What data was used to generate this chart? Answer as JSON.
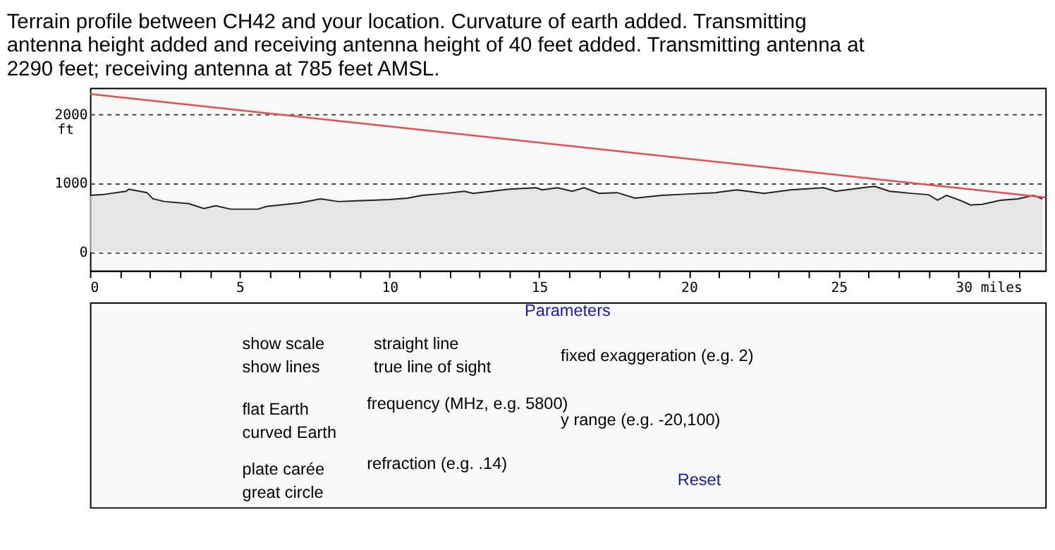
{
  "chart_data": {
    "type": "area",
    "title": "Terrain profile between CH42 and your location. Curvature of earth added. Transmitting antenna height added and receiving antenna height of 40 feet added. Transmitting antenna at 2290 feet; receiving antenna at 785 feet AMSL.",
    "ylabel": "ft",
    "series": [
      {
        "color": "#dddddd",
        "x": [
          0,
          0.4,
          1.2,
          1.3,
          1.9,
          2.1,
          2.5,
          3.3,
          3.8,
          4.2,
          4.7,
          5.6,
          5.9,
          7.0,
          7.7,
          8.3,
          8.8,
          10.0,
          10.6,
          11.1,
          11.9,
          12.5,
          12.8,
          13.4,
          14.0,
          14.9,
          15.1,
          15.6,
          16.1,
          16.5,
          17.0,
          17.6,
          18.2,
          19.1,
          20.0,
          20.9,
          21.6,
          22.5,
          23.4,
          24.5,
          24.9,
          25.8,
          26.2,
          26.7,
          27.4,
          28.0,
          28.3,
          28.6,
          29.1,
          29.4,
          29.8,
          30.4,
          31.0,
          31.5,
          31.8
        ],
        "values": [
          820,
          830,
          880,
          910,
          860,
          770,
          730,
          700,
          630,
          670,
          620,
          620,
          660,
          710,
          770,
          730,
          740,
          760,
          780,
          820,
          850,
          880,
          850,
          880,
          910,
          930,
          900,
          930,
          880,
          930,
          850,
          860,
          780,
          820,
          840,
          860,
          900,
          850,
          900,
          930,
          880,
          930,
          950,
          880,
          850,
          830,
          750,
          820,
          740,
          680,
          690,
          750,
          770,
          820,
          770
        ]
      },
      {
        "type": "line",
        "color": "#e05050",
        "x": [
          0,
          31.9
        ],
        "values": [
          2290,
          790
        ]
      }
    ],
    "xlim": [
      0,
      31.9
    ],
    "ylim": [
      -270,
      2380
    ],
    "xticks": [
      0,
      {
        "value": 1,
        "label": null
      },
      {
        "value": 2,
        "label": null
      },
      {
        "value": 3,
        "label": null
      },
      {
        "value": 4,
        "label": null
      },
      5,
      {
        "value": 6,
        "label": null
      },
      {
        "value": 7,
        "label": null
      },
      {
        "value": 8,
        "label": null
      },
      {
        "value": 9,
        "label": null
      },
      10,
      {
        "value": 11,
        "label": null
      },
      {
        "value": 12,
        "label": null
      },
      {
        "value": 13,
        "label": null
      },
      {
        "value": 14,
        "label": null
      },
      15,
      {
        "value": 16,
        "label": null
      },
      {
        "value": 17,
        "label": null
      },
      {
        "value": 18,
        "label": null
      },
      {
        "value": 19,
        "label": null
      },
      20,
      {
        "value": 21,
        "label": null
      },
      {
        "value": 22,
        "label": null
      },
      {
        "value": 23,
        "label": null
      },
      {
        "value": 24,
        "label": null
      },
      25,
      {
        "value": 26,
        "label": null
      },
      {
        "value": 27,
        "label": null
      },
      {
        "value": 28,
        "label": null
      },
      {
        "value": 29,
        "label": null
      },
      {
        "value": 30,
        "label": "30 miles"
      },
      {
        "value": 31,
        "label": null
      }
    ],
    "yticks": [
      0,
      1000,
      2000
    ],
    "grid": "y",
    "annotations": [
      "Parameters",
      "show scale",
      "show lines",
      "straight line",
      "true line of sight",
      "fixed exaggeration (e.g. 2)",
      "flat Earth",
      "curved Earth",
      "frequency (MHz, e.g. 5800)",
      "y range (e.g. -20,100)",
      "plate carée",
      "great circle",
      "refraction (e.g. .14)",
      "Reset"
    ]
  }
}
